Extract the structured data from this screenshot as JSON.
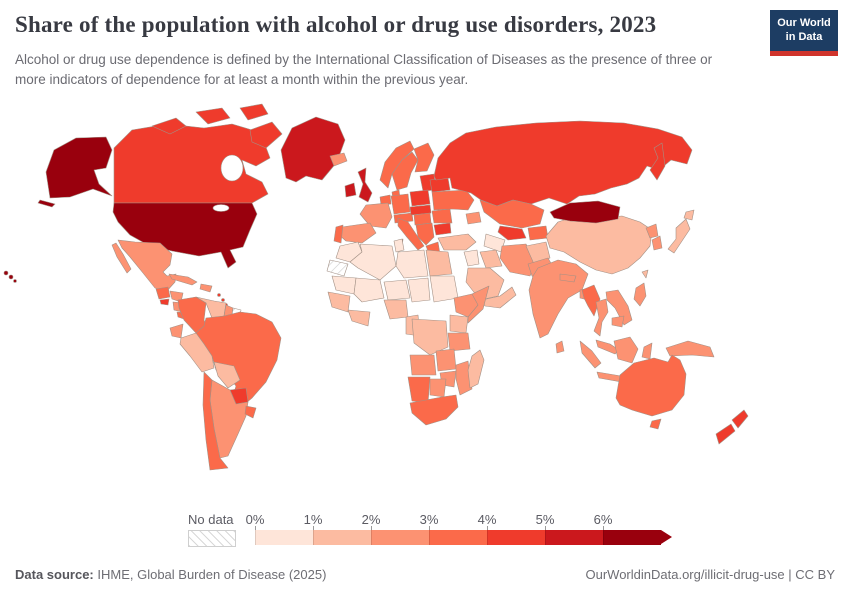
{
  "header": {
    "title": "Share of the population with alcohol or drug use disorders, 2023",
    "subtitle": "Alcohol or drug use dependence is defined by the International Classification of Diseases as the presence of three or more indicators of dependence for at least a month within the previous year."
  },
  "logo": {
    "line1": "Our World",
    "line2": "in Data",
    "bg_color": "#1d3d63",
    "accent_color": "#d0342c"
  },
  "legend": {
    "no_data_label": "No data"
  },
  "footer": {
    "source_label": "Data source:",
    "source_text": " IHME, Global Burden of Disease (2025)",
    "right_text": "OurWorldinData.org/illicit-drug-use | CC BY"
  },
  "chart_data": {
    "type": "choropleth_map",
    "title": "Share of the population with alcohol or drug use disorders",
    "year": "2023",
    "unit": "share of population",
    "projection": "world",
    "ocean_color": "#ffffff",
    "border_color": "#a39186",
    "legend_position": "bottom",
    "legend_tick_labels": [
      "0%",
      "1%",
      "2%",
      "3%",
      "4%",
      "5%",
      "6%"
    ],
    "legend_bins": [
      {
        "label": "0-1%",
        "color": "#fee5d9"
      },
      {
        "label": "1-2%",
        "color": "#fcbba1"
      },
      {
        "label": "2-3%",
        "color": "#fc9272"
      },
      {
        "label": "3-4%",
        "color": "#fb6a4a"
      },
      {
        "label": "4-5%",
        "color": "#ef3b2c"
      },
      {
        "label": "5-6%",
        "color": "#cb181d"
      },
      {
        "label": "6%+",
        "color": "#99000d"
      }
    ],
    "no_data": {
      "label": "No data",
      "style": "hatched"
    },
    "regions": {
      "usa": "6%+",
      "canada": "4-5%",
      "greenland": "5-6%",
      "mexico": "2-3%",
      "guatemala": "3-4%",
      "el-salvador": "4-5%",
      "honduras": "2-3%",
      "nicaragua": "2-3%",
      "costa-rica": "3-4%",
      "panama": "3-4%",
      "cuba": "2-3%",
      "hispaniola": "2-3%",
      "caribbean": "4-5%",
      "colombia": "3-4%",
      "venezuela": "1-2%",
      "guyana": "2-3%",
      "suriname": "No data",
      "ecuador": "2-3%",
      "peru": "1-2%",
      "brazil": "3-4%",
      "bolivia": "1-2%",
      "paraguay": "4-5%",
      "chile": "3-4%",
      "argentina": "2-3%",
      "uruguay": "3-4%",
      "iceland": "2-3%",
      "ireland": "5-6%",
      "uk": "5-6%",
      "norway": "3-4%",
      "sweden": "3-4%",
      "finland": "3-4%",
      "denmark": "3-4%",
      "baltics": "4-5%",
      "benelux": "3-4%",
      "germany": "3-4%",
      "france": "2-3%",
      "spain": "2-3%",
      "portugal": "3-4%",
      "italy": "3-4%",
      "switzerland-austria": "3-4%",
      "poland": "4-5%",
      "czech-slovakia": "4-5%",
      "hungary": "3-4%",
      "balkans": "3-4%",
      "greece": "3-4%",
      "romania": "3-4%",
      "bulgaria": "4-5%",
      "ukraine": "3-4%",
      "belarus": "4-5%",
      "russia": "4-5%",
      "kazakhstan": "3-4%",
      "uzbekistan": "4-5%",
      "turkmenistan": "0-1%",
      "kyrgyzstan-tajikistan": "3-4%",
      "caucasus": "2-3%",
      "turkey": "1-2%",
      "levant": "0-1%",
      "iraq": "1-2%",
      "iran": "2-3%",
      "saudi-arabia": "1-2%",
      "yemen-oman": "1-2%",
      "afghanistan": "1-2%",
      "pakistan": "2-3%",
      "india": "2-3%",
      "nepal": "2-3%",
      "bangladesh": "2-3%",
      "sri-lanka": "2-3%",
      "china": "1-2%",
      "mongolia": "6%+",
      "north-korea": "2-3%",
      "south-korea": "2-3%",
      "japan": "1-2%",
      "taiwan": "1-2%",
      "myanmar": "3-4%",
      "thailand": "2-3%",
      "vietnam-laos": "2-3%",
      "cambodia": "2-3%",
      "malaysia": "2-3%",
      "indonesia": "2-3%",
      "philippines": "2-3%",
      "new-guinea": "2-3%",
      "morocco": "0-1%",
      "western-sahara": "No data",
      "algeria": "0-1%",
      "tunisia": "0-1%",
      "libya": "0-1%",
      "egypt": "1-2%",
      "mauritania": "0-1%",
      "mali": "0-1%",
      "niger": "0-1%",
      "chad": "0-1%",
      "sudan": "0-1%",
      "senegal-guinea": "1-2%",
      "ivory-ghana": "1-2%",
      "nigeria": "1-2%",
      "cameroon-gabon": "1-2%",
      "ethiopia": "2-3%",
      "somalia": "2-3%",
      "kenya": "1-2%",
      "tanzania": "2-3%",
      "drc": "1-2%",
      "angola": "2-3%",
      "zambia": "2-3%",
      "mozambique": "2-3%",
      "zimbabwe": "2-3%",
      "namibia": "3-4%",
      "botswana": "2-3%",
      "south-africa": "3-4%",
      "madagascar": "1-2%",
      "australia": "3-4%",
      "tasmania": "3-4%",
      "new-zealand": "4-5%"
    }
  }
}
